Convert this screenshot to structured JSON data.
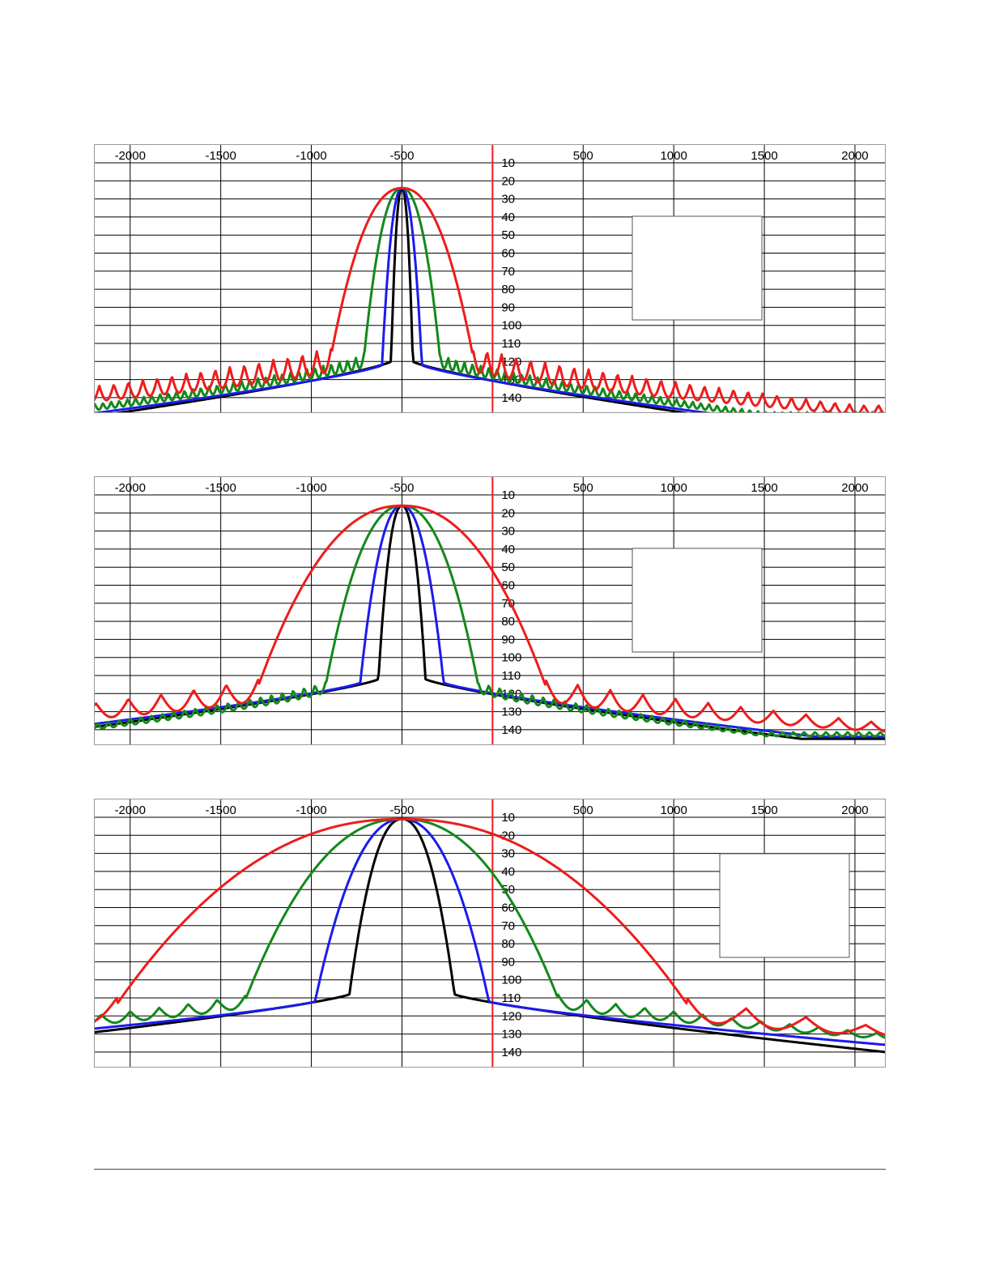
{
  "colors": {
    "red": "#ee1c1c",
    "green": "#13891a",
    "blue": "#1b1bee",
    "black": "#000000",
    "grid": "#000000",
    "center_line": "#ee1c1c",
    "frame": "#999999"
  },
  "chart_data": [
    {
      "type": "line",
      "grid": true,
      "xlim": [
        -2200,
        2170
      ],
      "ylim": [
        10,
        150
      ],
      "x_ticks": [
        -2000,
        -1500,
        -1000,
        -500,
        500,
        1000,
        1500,
        2000
      ],
      "x_tick_labels": [
        "-2000",
        "-1500",
        "-1000",
        "-500",
        "500",
        "1000",
        "1500",
        "2000"
      ],
      "y_ticks": [
        10,
        20,
        30,
        40,
        50,
        60,
        70,
        80,
        90,
        100,
        110,
        120,
        130,
        140
      ],
      "y_tick_labels": [
        "10",
        "20",
        "30",
        "40",
        "50",
        "60",
        "70",
        "80",
        "90",
        "100",
        "110",
        "120",
        "130",
        "140"
      ],
      "y_axis_position": 0,
      "center_line_x": 0,
      "legend_box": "right, empty",
      "series": [
        {
          "color": "red",
          "peak_x": -500,
          "peak_y": 24,
          "half_width": 390,
          "shoulder_y": 116,
          "floor_y": 148,
          "ripple_amp": 13,
          "ripple_period": 80,
          "floor_reach": 2000
        },
        {
          "color": "green",
          "peak_x": -500,
          "peak_y": 24,
          "half_width": 210,
          "shoulder_y": 118,
          "floor_y": 150,
          "ripple_amp": 7,
          "ripple_period": 45,
          "floor_reach": 1500
        },
        {
          "color": "blue",
          "peak_x": -500,
          "peak_y": 24,
          "half_width": 110,
          "shoulder_y": 122,
          "floor_y": 152,
          "ripple_amp": 0,
          "ripple_period": 0,
          "floor_reach": 1450
        },
        {
          "color": "black",
          "peak_x": -500,
          "peak_y": 24,
          "half_width": 60,
          "shoulder_y": 120,
          "floor_y": 152,
          "ripple_amp": 0,
          "ripple_period": 0,
          "floor_reach": 1300
        }
      ]
    },
    {
      "type": "line",
      "grid": true,
      "xlim": [
        -2200,
        2170
      ],
      "ylim": [
        10,
        150
      ],
      "x_ticks": [
        -2000,
        -1500,
        -1000,
        -500,
        500,
        1000,
        1500,
        2000
      ],
      "x_tick_labels": [
        "-2000",
        "-1500",
        "-1000",
        "-500",
        "500",
        "1000",
        "1500",
        "2000"
      ],
      "y_ticks": [
        10,
        20,
        30,
        40,
        50,
        60,
        70,
        80,
        90,
        100,
        110,
        120,
        130,
        140
      ],
      "y_tick_labels": [
        "10",
        "20",
        "30",
        "40",
        "50",
        "60",
        "70",
        "80",
        "90",
        "100",
        "110",
        "120",
        "130",
        "140"
      ],
      "y_axis_position": 0,
      "center_line_x": 0,
      "legend_box": "right, empty",
      "series": [
        {
          "color": "red",
          "peak_x": -500,
          "peak_y": 16,
          "half_width": 790,
          "shoulder_y": 115,
          "floor_y": 140,
          "ripple_amp": 12,
          "ripple_period": 180,
          "floor_reach": 2170
        },
        {
          "color": "green",
          "peak_x": -500,
          "peak_y": 16,
          "half_width": 420,
          "shoulder_y": 115,
          "floor_y": 143,
          "ripple_amp": 6,
          "ripple_period": 60,
          "floor_reach": 1500
        },
        {
          "color": "blue",
          "peak_x": -500,
          "peak_y": 16,
          "half_width": 230,
          "shoulder_y": 114,
          "floor_y": 144,
          "ripple_amp": 0,
          "ripple_period": 0,
          "floor_reach": 1800
        },
        {
          "color": "black",
          "peak_x": -500,
          "peak_y": 16,
          "half_width": 130,
          "shoulder_y": 112,
          "floor_y": 145,
          "ripple_amp": 0,
          "ripple_period": 0,
          "floor_reach": 1700
        }
      ]
    },
    {
      "type": "line",
      "grid": true,
      "xlim": [
        -2200,
        2170
      ],
      "ylim": [
        10,
        150
      ],
      "x_ticks": [
        -2000,
        -1500,
        -1000,
        -500,
        500,
        1000,
        1500,
        2000
      ],
      "x_tick_labels": [
        "-2000",
        "-1500",
        "-1000",
        "-500",
        "500",
        "1000",
        "1500",
        "2000"
      ],
      "y_ticks": [
        10,
        20,
        30,
        40,
        50,
        60,
        70,
        80,
        90,
        100,
        110,
        120,
        130,
        140
      ],
      "y_tick_labels": [
        "10",
        "20",
        "30",
        "40",
        "50",
        "60",
        "70",
        "80",
        "90",
        "100",
        "110",
        "120",
        "130",
        "140"
      ],
      "y_axis_position": 0,
      "center_line_x": 0,
      "legend_box": "right, empty",
      "series": [
        {
          "color": "red",
          "peak_x": -500,
          "peak_y": 11,
          "half_width": 1570,
          "shoulder_y": 113,
          "floor_y": 130,
          "ripple_amp": 12,
          "ripple_period": 330,
          "floor_reach": 2170
        },
        {
          "color": "green",
          "peak_x": -500,
          "peak_y": 11,
          "half_width": 860,
          "shoulder_y": 110,
          "floor_y": 132,
          "ripple_amp": 7,
          "ripple_period": 160,
          "floor_reach": 2170
        },
        {
          "color": "blue",
          "peak_x": -500,
          "peak_y": 11,
          "half_width": 480,
          "shoulder_y": 112,
          "floor_y": 136,
          "ripple_amp": 0,
          "ripple_period": 0,
          "floor_reach": 2170
        },
        {
          "color": "black",
          "peak_x": -500,
          "peak_y": 11,
          "half_width": 290,
          "shoulder_y": 108,
          "floor_y": 140,
          "ripple_amp": 0,
          "ripple_period": 0,
          "floor_reach": 2170
        }
      ]
    }
  ]
}
